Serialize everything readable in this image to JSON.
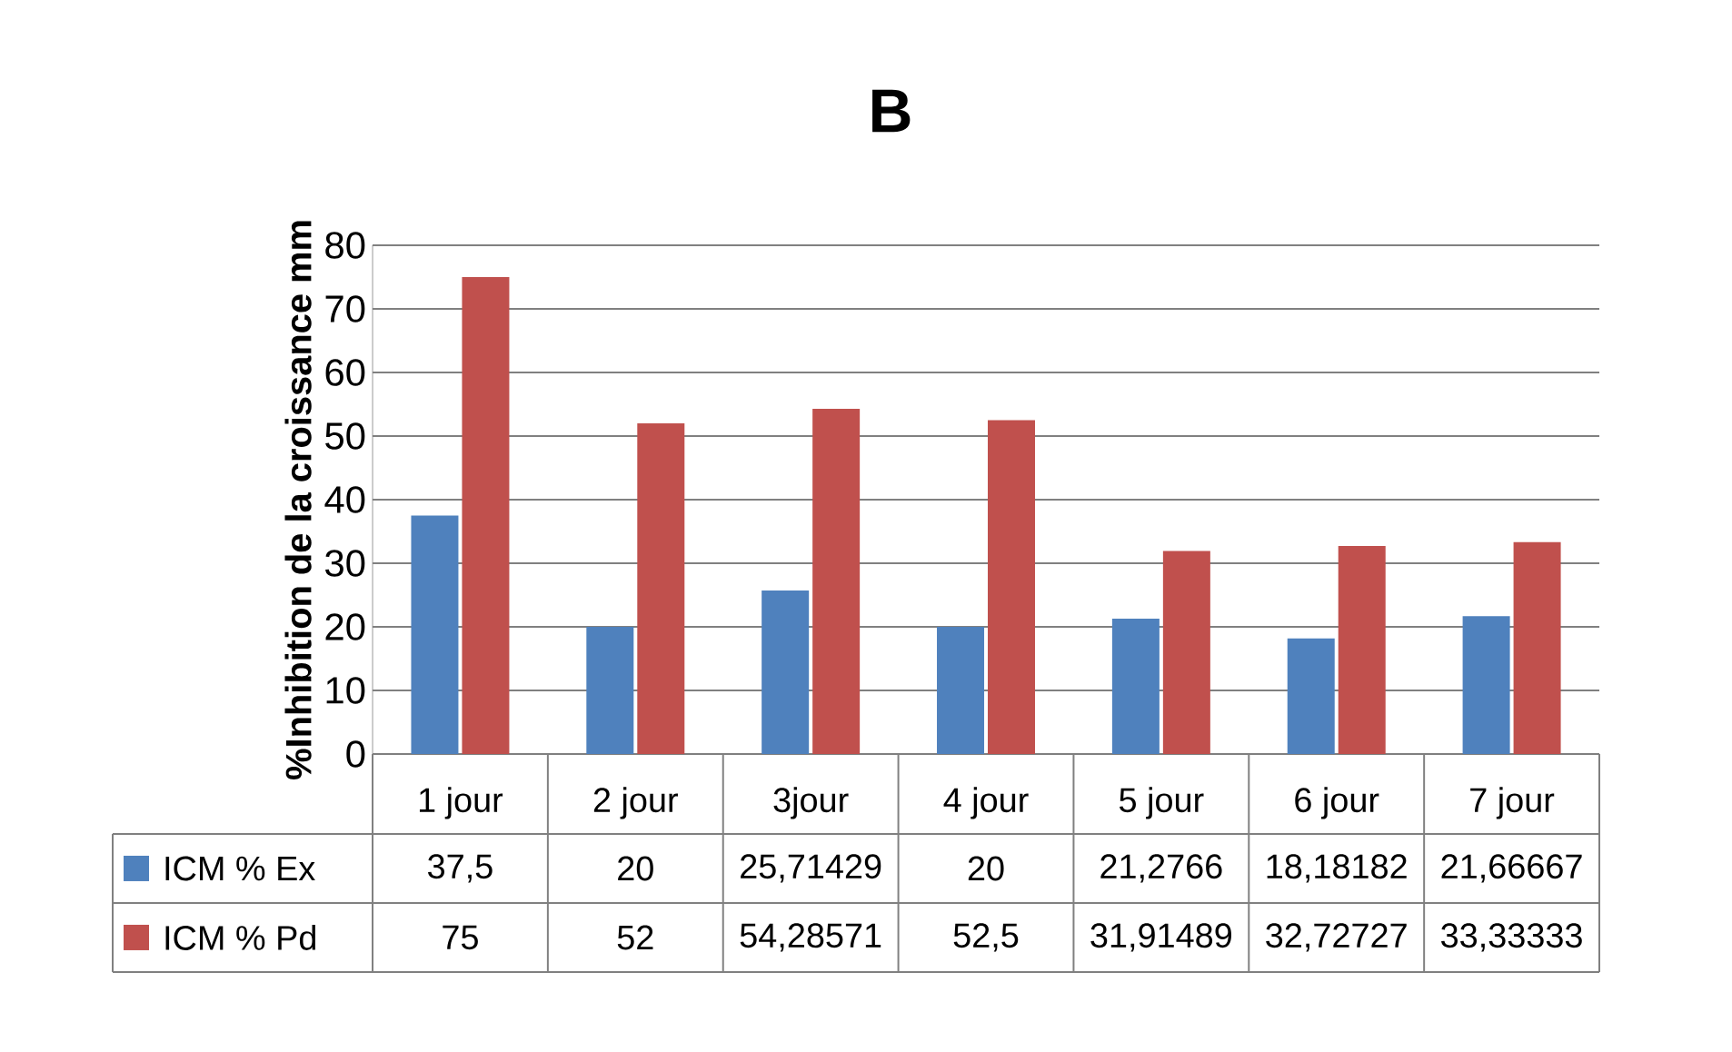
{
  "chart_data": {
    "type": "bar",
    "title": "B",
    "ylabel": "%Inhibition de la croissance  mm",
    "categories": [
      "1 jour",
      "2 jour",
      "3jour",
      "4 jour",
      "5 jour",
      "6 jour",
      "7 jour"
    ],
    "series": [
      {
        "name": "ICM % Ex",
        "color": "#4f81bd",
        "values": [
          37.5,
          20,
          25.71429,
          20,
          21.2766,
          18.18182,
          21.66667
        ],
        "value_labels": [
          "37,5",
          "20",
          "25,71429",
          "20",
          "21,2766",
          "18,18182",
          "21,66667"
        ]
      },
      {
        "name": "ICM % Pd",
        "color": "#c0504d",
        "values": [
          75,
          52,
          54.28571,
          52.5,
          31.91489,
          32.72727,
          33.33333
        ],
        "value_labels": [
          "75",
          "52",
          "54,28571",
          "52,5",
          "31,91489",
          "32,72727",
          "33,33333"
        ]
      }
    ],
    "ylim": [
      0,
      80
    ],
    "yticks": [
      0,
      10,
      20,
      30,
      40,
      50,
      60,
      70,
      80
    ],
    "grid": "y",
    "legend": "bottom"
  }
}
